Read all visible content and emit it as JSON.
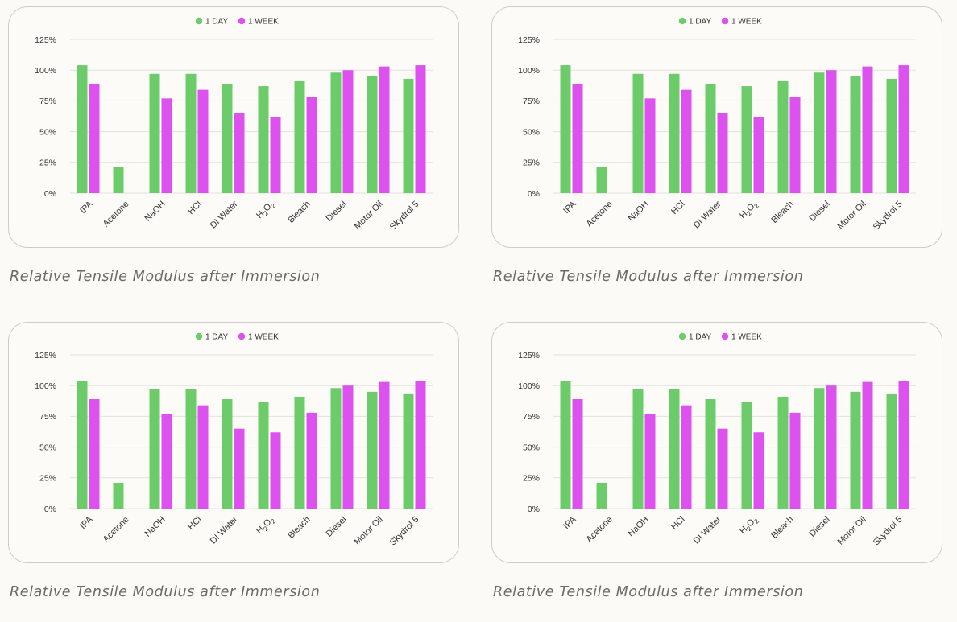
{
  "captions": [
    "Relative Tensile Modulus after Immersion",
    "Relative Tensile Modulus after Immersion",
    "Relative Tensile Modulus after Immersion",
    "Relative Tensile Modulus after Immersion"
  ],
  "colors": {
    "day": "#6ccc6a",
    "week": "#dd52ee"
  },
  "chart_data": [
    {
      "type": "bar",
      "title": "",
      "xlabel": "",
      "ylabel": "",
      "ylim": [
        0,
        125
      ],
      "yticks": [
        0,
        25,
        50,
        75,
        100,
        125
      ],
      "ytick_labels": [
        "0%",
        "25%",
        "50%",
        "75%",
        "100%",
        "125%"
      ],
      "legend_position": "top-center",
      "categories": [
        "IPA",
        "Acetone",
        "NaOH",
        "HCl",
        "DI Water",
        "H2O2",
        "Bleach",
        "Diesel",
        "Motor Oil",
        "Skydrol 5"
      ],
      "series": [
        {
          "name": "1 DAY",
          "values": [
            104,
            21,
            97,
            97,
            89,
            87,
            91,
            98,
            95,
            93
          ]
        },
        {
          "name": "1 WEEK",
          "values": [
            89,
            null,
            77,
            84,
            65,
            62,
            78,
            100,
            103,
            104
          ]
        }
      ]
    },
    {
      "type": "bar",
      "title": "",
      "xlabel": "",
      "ylabel": "",
      "ylim": [
        0,
        125
      ],
      "yticks": [
        0,
        25,
        50,
        75,
        100,
        125
      ],
      "ytick_labels": [
        "0%",
        "25%",
        "50%",
        "75%",
        "100%",
        "125%"
      ],
      "legend_position": "top-center",
      "categories": [
        "IPA",
        "Acetone",
        "NaOH",
        "HCl",
        "DI Water",
        "H2O2",
        "Bleach",
        "Diesel",
        "Motor Oil",
        "Skydrol 5"
      ],
      "series": [
        {
          "name": "1 DAY",
          "values": [
            104,
            21,
            97,
            97,
            89,
            87,
            91,
            98,
            95,
            93
          ]
        },
        {
          "name": "1 WEEK",
          "values": [
            89,
            null,
            77,
            84,
            65,
            62,
            78,
            100,
            103,
            104
          ]
        }
      ]
    },
    {
      "type": "bar",
      "title": "",
      "xlabel": "",
      "ylabel": "",
      "ylim": [
        0,
        125
      ],
      "yticks": [
        0,
        25,
        50,
        75,
        100,
        125
      ],
      "ytick_labels": [
        "0%",
        "25%",
        "50%",
        "75%",
        "100%",
        "125%"
      ],
      "legend_position": "top-center",
      "categories": [
        "IPA",
        "Acetone",
        "NaOH",
        "HCl",
        "DI Water",
        "H2O2",
        "Bleach",
        "Diesel",
        "Motor Oil",
        "Skydrol 5"
      ],
      "series": [
        {
          "name": "1 DAY",
          "values": [
            104,
            21,
            97,
            97,
            89,
            87,
            91,
            98,
            95,
            93
          ]
        },
        {
          "name": "1 WEEK",
          "values": [
            89,
            null,
            77,
            84,
            65,
            62,
            78,
            100,
            103,
            104
          ]
        }
      ]
    },
    {
      "type": "bar",
      "title": "",
      "xlabel": "",
      "ylabel": "",
      "ylim": [
        0,
        125
      ],
      "yticks": [
        0,
        25,
        50,
        75,
        100,
        125
      ],
      "ytick_labels": [
        "0%",
        "25%",
        "50%",
        "75%",
        "100%",
        "125%"
      ],
      "legend_position": "top-center",
      "categories": [
        "IPA",
        "Acetone",
        "NaOH",
        "HCl",
        "DI Water",
        "H2O2",
        "Bleach",
        "Diesel",
        "Motor Oil",
        "Skydrol 5"
      ],
      "series": [
        {
          "name": "1 DAY",
          "values": [
            104,
            21,
            97,
            97,
            89,
            87,
            91,
            98,
            95,
            93
          ]
        },
        {
          "name": "1 WEEK",
          "values": [
            89,
            null,
            77,
            84,
            65,
            62,
            78,
            100,
            103,
            104
          ]
        }
      ]
    }
  ]
}
